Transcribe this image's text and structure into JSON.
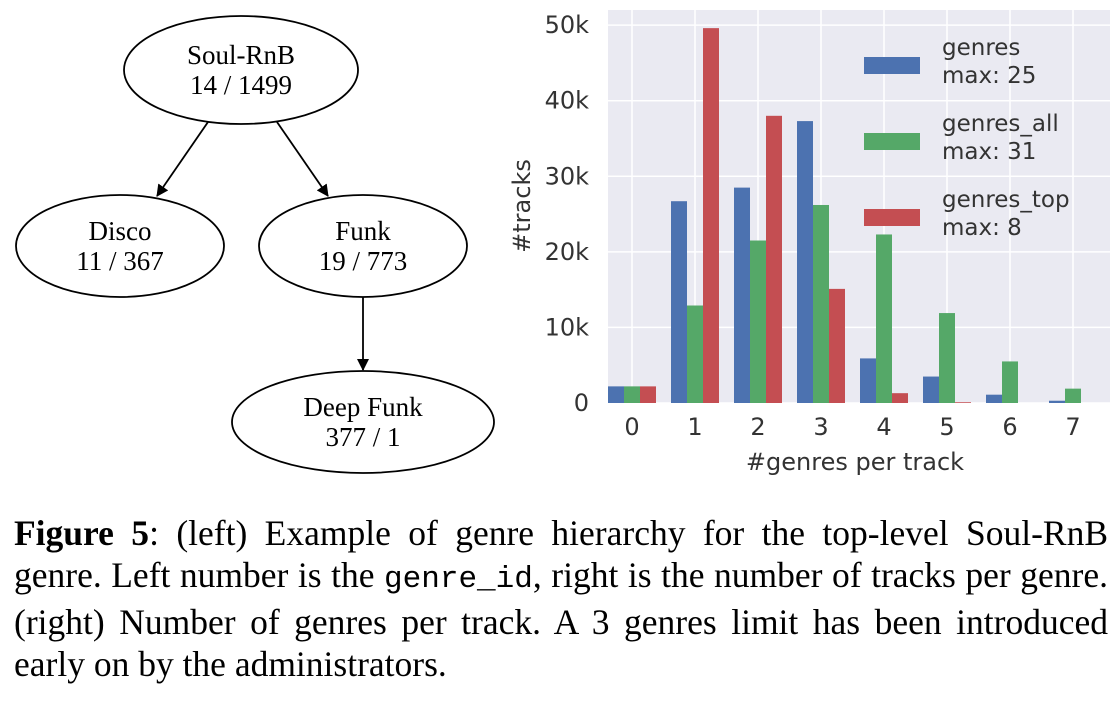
{
  "tree": {
    "nodes": [
      {
        "id": "soul-rnb",
        "name": "Soul-RnB",
        "label": "14 / 1499"
      },
      {
        "id": "disco",
        "name": "Disco",
        "label": "11 / 367"
      },
      {
        "id": "funk",
        "name": "Funk",
        "label": "19 / 773"
      },
      {
        "id": "deep-funk",
        "name": "Deep Funk",
        "label": "377 / 1"
      }
    ],
    "edges": [
      {
        "from": "soul-rnb",
        "to": "disco"
      },
      {
        "from": "soul-rnb",
        "to": "funk"
      },
      {
        "from": "funk",
        "to": "deep-funk"
      }
    ]
  },
  "chart_data": {
    "type": "bar",
    "xlabel": "#genres per track",
    "ylabel": "#tracks",
    "categories": [
      "0",
      "1",
      "2",
      "3",
      "4",
      "5",
      "6",
      "7"
    ],
    "yticks": [
      "0",
      "10k",
      "20k",
      "30k",
      "40k",
      "50k"
    ],
    "ylim": [
      0,
      52000
    ],
    "grid": true,
    "legend_position": "top-right",
    "series": [
      {
        "name": "genres",
        "legend_sub": "max: 25",
        "color": "#4c72b0",
        "values": [
          2200,
          26700,
          28500,
          37300,
          5900,
          3500,
          1100,
          300
        ]
      },
      {
        "name": "genres_all",
        "legend_sub": "max: 31",
        "color": "#55a868",
        "values": [
          2200,
          12900,
          21500,
          26200,
          22300,
          11900,
          5500,
          1900
        ]
      },
      {
        "name": "genres_top",
        "legend_sub": "max: 8",
        "color": "#c44e52",
        "values": [
          2200,
          49600,
          38000,
          15100,
          1300,
          100,
          0,
          0
        ]
      }
    ]
  },
  "caption": {
    "label": "Figure 5",
    "text_1": ":  (left) Example of genre hierarchy for the top-level Soul-RnB genre.  Left number is the ",
    "code": "genre_id",
    "text_2": ", right is the number of tracks per genre. (right) Number of genres per track. A 3 genres limit has been introduced early on by the administrators."
  }
}
